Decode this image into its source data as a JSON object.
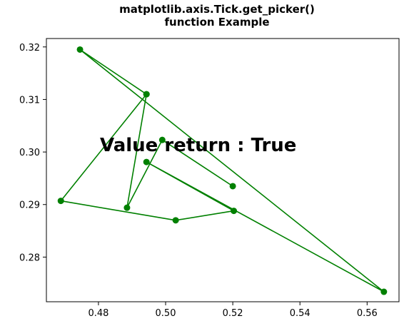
{
  "chart_data": {
    "type": "line",
    "title": [
      "matplotlib.axis.Tick.get_picker()",
      "function Example"
    ],
    "xlabel": "",
    "ylabel": "",
    "xlim": [
      0.4645,
      0.5695
    ],
    "ylim": [
      0.2715,
      0.3216
    ],
    "xticks": [
      0.48,
      0.5,
      0.52,
      0.54,
      0.56
    ],
    "xtick_labels": [
      "0.48",
      "0.50",
      "0.52",
      "0.54",
      "0.56"
    ],
    "yticks": [
      0.28,
      0.29,
      0.3,
      0.31,
      0.32
    ],
    "ytick_labels": [
      "0.28",
      "0.29",
      "0.30",
      "0.31",
      "0.32"
    ],
    "grid": false,
    "series": [
      {
        "color": "#008000",
        "marker": "circle",
        "x": [
          0.4943,
          0.4688,
          0.503,
          0.5203,
          0.4943,
          0.565,
          0.4745,
          0.4943,
          0.4885,
          0.499,
          0.52
        ],
        "y": [
          0.311,
          0.2907,
          0.287,
          0.2888,
          0.2981,
          0.2734,
          0.3195,
          0.311,
          0.2894,
          0.3023,
          0.2935
        ]
      }
    ],
    "annotation": {
      "text": "Value return : True",
      "x": 0.4645,
      "y": 0.3003
    }
  }
}
